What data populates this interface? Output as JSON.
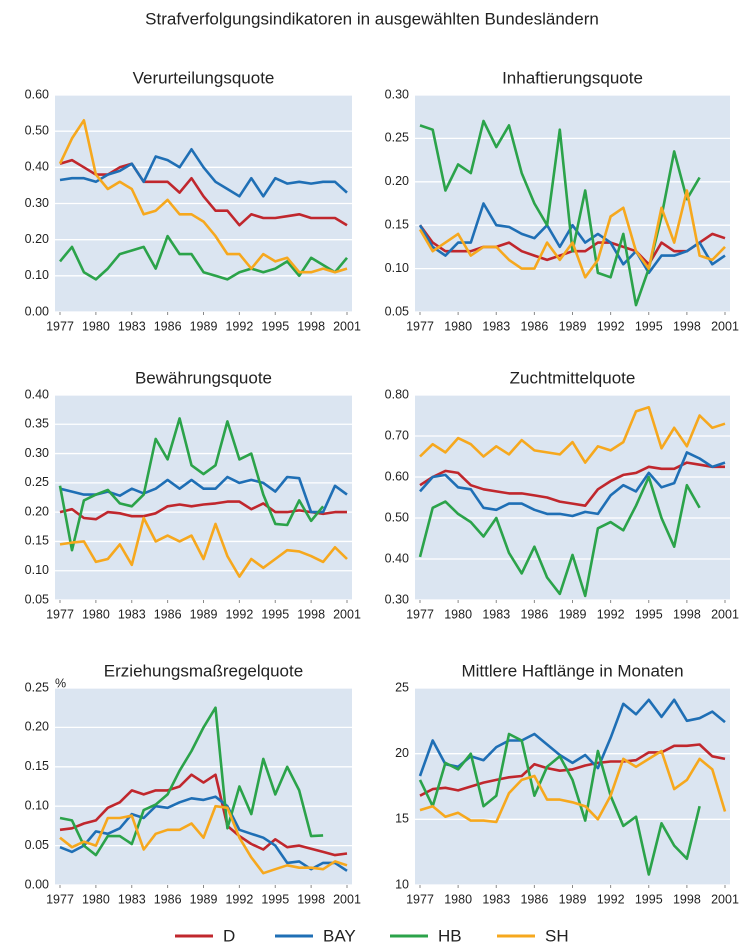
{
  "title": "Strafverfolgungsindikatoren in ausgewählten Bundesländern",
  "legend": [
    {
      "name": "D",
      "color": "#c0272d"
    },
    {
      "name": "BAY",
      "color": "#1f6fb5"
    },
    {
      "name": "HB",
      "color": "#2ba34a"
    },
    {
      "name": "SH",
      "color": "#f6a81e"
    }
  ],
  "chart_data": [
    {
      "type": "line",
      "title": "Verurteilungsquote",
      "x": [
        1977,
        1978,
        1979,
        1980,
        1981,
        1982,
        1983,
        1984,
        1985,
        1986,
        1987,
        1988,
        1989,
        1990,
        1991,
        1992,
        1993,
        1994,
        1995,
        1996,
        1997,
        1998,
        1999,
        2000,
        2001
      ],
      "xlim": [
        1977,
        2001
      ],
      "xticks": [
        1977,
        1980,
        1983,
        1986,
        1989,
        1992,
        1995,
        1998,
        2001
      ],
      "ylim": [
        0,
        0.6
      ],
      "yticks": [
        {
          "value": 0,
          "label": "0.00"
        },
        {
          "value": 0.1,
          "label": "0.10"
        },
        {
          "value": 0.2,
          "label": "0.20"
        },
        {
          "value": 0.3,
          "label": "0.30"
        },
        {
          "value": 0.4,
          "label": "0.40"
        },
        {
          "value": 0.5,
          "label": "0.50"
        },
        {
          "value": 0.6,
          "label": "0.60"
        }
      ],
      "grid": true,
      "series": [
        {
          "values": [
            0.41,
            0.42,
            0.4,
            0.38,
            0.38,
            0.4,
            0.41,
            0.36,
            0.36,
            0.36,
            0.33,
            0.37,
            0.32,
            0.28,
            0.28,
            0.24,
            0.27,
            0.26,
            0.26,
            0.265,
            0.27,
            0.26,
            0.26,
            0.26,
            0.24
          ]
        },
        {
          "values": [
            0.365,
            0.37,
            0.37,
            0.36,
            0.38,
            0.39,
            0.41,
            0.36,
            0.43,
            0.42,
            0.4,
            0.45,
            0.4,
            0.36,
            0.34,
            0.32,
            0.37,
            0.32,
            0.37,
            0.355,
            0.36,
            0.355,
            0.36,
            0.36,
            0.33
          ]
        },
        {
          "values": [
            0.14,
            0.18,
            0.11,
            0.09,
            0.12,
            0.16,
            0.17,
            0.18,
            0.12,
            0.21,
            0.16,
            0.16,
            0.11,
            0.1,
            0.09,
            0.11,
            0.12,
            0.11,
            0.12,
            0.14,
            0.1,
            0.15,
            0.13,
            0.11,
            0.15
          ]
        },
        {
          "values": [
            0.41,
            0.48,
            0.53,
            0.38,
            0.34,
            0.36,
            0.34,
            0.27,
            0.28,
            0.31,
            0.27,
            0.27,
            0.25,
            0.21,
            0.16,
            0.16,
            0.12,
            0.16,
            0.14,
            0.15,
            0.11,
            0.11,
            0.12,
            0.11,
            0.12
          ]
        }
      ]
    },
    {
      "type": "line",
      "title": "Inhaftierungsquote",
      "x": [
        1977,
        1978,
        1979,
        1980,
        1981,
        1982,
        1983,
        1984,
        1985,
        1986,
        1987,
        1988,
        1989,
        1990,
        1991,
        1992,
        1993,
        1994,
        1995,
        1996,
        1997,
        1998,
        1999,
        2000,
        2001
      ],
      "xlim": [
        1977,
        2001
      ],
      "xticks": [
        1977,
        1980,
        1983,
        1986,
        1989,
        1992,
        1995,
        1998,
        2001
      ],
      "ylim": [
        0.05,
        0.3
      ],
      "yticks": [
        0.05,
        {
          "value": 0.1,
          "label": "0.10"
        },
        0.15,
        {
          "value": 0.2,
          "label": "0.20"
        },
        0.25,
        {
          "value": 0.3,
          "label": "0.30"
        }
      ],
      "grid": true,
      "series": [
        {
          "values": [
            0.15,
            0.13,
            0.12,
            0.12,
            0.12,
            0.125,
            0.125,
            0.13,
            0.12,
            0.115,
            0.11,
            0.115,
            0.12,
            0.12,
            0.13,
            0.13,
            0.125,
            0.12,
            0.105,
            0.13,
            0.12,
            0.12,
            0.13,
            0.14,
            0.135
          ]
        },
        {
          "values": [
            0.15,
            0.125,
            0.115,
            0.13,
            0.13,
            0.175,
            0.15,
            0.148,
            0.14,
            0.135,
            0.15,
            0.125,
            0.15,
            0.13,
            0.14,
            0.13,
            0.105,
            0.12,
            0.095,
            0.115,
            0.115,
            0.12,
            0.13,
            0.105,
            0.115
          ]
        },
        {
          "values": [
            0.265,
            0.26,
            0.19,
            0.22,
            0.21,
            0.27,
            0.24,
            0.265,
            0.21,
            0.175,
            0.15,
            0.26,
            0.12,
            0.19,
            0.095,
            0.09,
            0.14,
            0.058,
            0.1,
            0.16,
            0.235,
            0.18,
            0.205,
            null,
            null
          ]
        },
        {
          "values": [
            0.145,
            0.12,
            0.13,
            0.14,
            0.115,
            0.125,
            0.125,
            0.11,
            0.1,
            0.1,
            0.13,
            0.11,
            0.13,
            0.09,
            0.11,
            0.16,
            0.17,
            0.12,
            0.1,
            0.17,
            0.13,
            0.19,
            0.115,
            0.11,
            0.125
          ]
        }
      ]
    },
    {
      "type": "line",
      "title": "Bewährungsquote",
      "x": [
        1977,
        1978,
        1979,
        1980,
        1981,
        1982,
        1983,
        1984,
        1985,
        1986,
        1987,
        1988,
        1989,
        1990,
        1991,
        1992,
        1993,
        1994,
        1995,
        1996,
        1997,
        1998,
        1999,
        2000,
        2001
      ],
      "xlim": [
        1977,
        2001
      ],
      "xticks": [
        1977,
        1980,
        1983,
        1986,
        1989,
        1992,
        1995,
        1998,
        2001
      ],
      "ylim": [
        0.05,
        0.4
      ],
      "yticks": [
        0.05,
        {
          "value": 0.1,
          "label": "0.10"
        },
        0.15,
        {
          "value": 0.2,
          "label": "0.20"
        },
        0.25,
        {
          "value": 0.3,
          "label": "0.30"
        },
        0.35,
        {
          "value": 0.4,
          "label": "0.40"
        }
      ],
      "grid": true,
      "series": [
        {
          "values": [
            0.2,
            0.205,
            0.19,
            0.188,
            0.2,
            0.198,
            0.193,
            0.193,
            0.198,
            0.21,
            0.213,
            0.21,
            0.213,
            0.215,
            0.218,
            0.218,
            0.205,
            0.215,
            0.2,
            0.2,
            0.203,
            0.2,
            0.197,
            0.2,
            0.2
          ]
        },
        {
          "values": [
            0.24,
            0.235,
            0.23,
            0.23,
            0.235,
            0.228,
            0.24,
            0.232,
            0.24,
            0.255,
            0.24,
            0.255,
            0.24,
            0.24,
            0.26,
            0.25,
            0.255,
            0.25,
            0.235,
            0.26,
            0.258,
            0.2,
            0.2,
            0.245,
            0.23
          ]
        },
        {
          "values": [
            0.245,
            0.135,
            0.22,
            0.23,
            0.238,
            0.215,
            0.21,
            0.23,
            0.325,
            0.29,
            0.36,
            0.28,
            0.265,
            0.28,
            0.355,
            0.29,
            0.3,
            0.23,
            0.18,
            0.178,
            0.22,
            0.185,
            0.21,
            null,
            null
          ]
        },
        {
          "values": [
            0.145,
            0.148,
            0.15,
            0.115,
            0.12,
            0.145,
            0.11,
            0.19,
            0.15,
            0.16,
            0.15,
            0.16,
            0.12,
            0.18,
            0.125,
            0.09,
            0.12,
            0.105,
            0.12,
            0.135,
            0.133,
            0.125,
            0.115,
            0.14,
            0.12
          ]
        }
      ]
    },
    {
      "type": "line",
      "title": "Zuchtmittelquote",
      "x": [
        1977,
        1978,
        1979,
        1980,
        1981,
        1982,
        1983,
        1984,
        1985,
        1986,
        1987,
        1988,
        1989,
        1990,
        1991,
        1992,
        1993,
        1994,
        1995,
        1996,
        1997,
        1998,
        1999,
        2000,
        2001
      ],
      "xlim": [
        1977,
        2001
      ],
      "xticks": [
        1977,
        1980,
        1983,
        1986,
        1989,
        1992,
        1995,
        1998,
        2001
      ],
      "ylim": [
        0.3,
        0.8
      ],
      "yticks": [
        {
          "value": 0.3,
          "label": "0.30"
        },
        {
          "value": 0.4,
          "label": "0.40"
        },
        {
          "value": 0.5,
          "label": "0.50"
        },
        {
          "value": 0.6,
          "label": "0.60"
        },
        {
          "value": 0.7,
          "label": "0.70"
        },
        {
          "value": 0.8,
          "label": "0.80"
        }
      ],
      "grid": true,
      "series": [
        {
          "values": [
            0.58,
            0.6,
            0.615,
            0.61,
            0.58,
            0.57,
            0.565,
            0.56,
            0.56,
            0.555,
            0.55,
            0.54,
            0.535,
            0.53,
            0.57,
            0.59,
            0.605,
            0.61,
            0.625,
            0.62,
            0.62,
            0.635,
            0.63,
            0.625,
            0.625
          ]
        },
        {
          "values": [
            0.565,
            0.6,
            0.605,
            0.575,
            0.57,
            0.525,
            0.52,
            0.535,
            0.535,
            0.52,
            0.51,
            0.51,
            0.505,
            0.515,
            0.51,
            0.555,
            0.58,
            0.565,
            0.61,
            0.575,
            0.585,
            0.66,
            0.645,
            0.625,
            0.635
          ]
        },
        {
          "values": [
            0.405,
            0.525,
            0.54,
            0.51,
            0.49,
            0.455,
            0.5,
            0.415,
            0.365,
            0.43,
            0.355,
            0.315,
            0.41,
            0.31,
            0.475,
            0.49,
            0.47,
            0.53,
            0.6,
            0.5,
            0.43,
            0.58,
            0.525,
            null,
            null
          ]
        },
        {
          "values": [
            0.65,
            0.68,
            0.66,
            0.695,
            0.68,
            0.65,
            0.675,
            0.655,
            0.69,
            0.665,
            0.66,
            0.655,
            0.685,
            0.635,
            0.675,
            0.665,
            0.685,
            0.76,
            0.77,
            0.67,
            0.72,
            0.675,
            0.75,
            0.72,
            0.73
          ]
        }
      ]
    },
    {
      "type": "line",
      "title": "Erziehungsmaßregelquote",
      "y_unit": "%",
      "x": [
        1977,
        1978,
        1979,
        1980,
        1981,
        1982,
        1983,
        1984,
        1985,
        1986,
        1987,
        1988,
        1989,
        1990,
        1991,
        1992,
        1993,
        1994,
        1995,
        1996,
        1997,
        1998,
        1999,
        2000,
        2001
      ],
      "xlim": [
        1977,
        2001
      ],
      "xticks": [
        1977,
        1980,
        1983,
        1986,
        1989,
        1992,
        1995,
        1998,
        2001
      ],
      "ylim": [
        0,
        0.25
      ],
      "yticks": [
        {
          "value": 0,
          "label": "0.00"
        },
        0.05,
        {
          "value": 0.1,
          "label": "0.10"
        },
        0.15,
        {
          "value": 0.2,
          "label": "0.20"
        },
        0.25
      ],
      "grid": true,
      "series": [
        {
          "values": [
            0.07,
            0.072,
            0.078,
            0.082,
            0.098,
            0.105,
            0.12,
            0.115,
            0.12,
            0.12,
            0.125,
            0.14,
            0.13,
            0.14,
            0.075,
            0.062,
            0.052,
            0.045,
            0.058,
            0.048,
            0.05,
            0.046,
            0.042,
            0.038,
            0.04
          ]
        },
        {
          "values": [
            0.048,
            0.042,
            0.05,
            0.068,
            0.065,
            0.072,
            0.09,
            0.085,
            0.1,
            0.098,
            0.105,
            0.11,
            0.108,
            0.112,
            0.1,
            0.07,
            0.065,
            0.06,
            0.05,
            0.028,
            0.03,
            0.02,
            0.028,
            0.028,
            0.018
          ]
        },
        {
          "values": [
            0.085,
            0.082,
            0.05,
            0.038,
            0.062,
            0.062,
            0.052,
            0.095,
            0.102,
            0.115,
            0.145,
            0.17,
            0.2,
            0.225,
            0.072,
            0.125,
            0.09,
            0.16,
            0.115,
            0.15,
            0.12,
            0.062,
            0.063,
            null,
            null
          ]
        },
        {
          "values": [
            0.06,
            0.048,
            0.055,
            0.05,
            0.085,
            0.085,
            0.088,
            0.045,
            0.065,
            0.07,
            0.07,
            0.078,
            0.06,
            0.1,
            0.098,
            0.06,
            0.035,
            0.015,
            0.02,
            0.025,
            0.022,
            0.022,
            0.02,
            0.03,
            0.025
          ]
        }
      ]
    },
    {
      "type": "line",
      "title": "Mittlere Haftlänge in Monaten",
      "x": [
        1977,
        1978,
        1979,
        1980,
        1981,
        1982,
        1983,
        1984,
        1985,
        1986,
        1987,
        1988,
        1989,
        1990,
        1991,
        1992,
        1993,
        1994,
        1995,
        1996,
        1997,
        1998,
        1999,
        2000,
        2001
      ],
      "xlim": [
        1977,
        2001
      ],
      "xticks": [
        1977,
        1980,
        1983,
        1986,
        1989,
        1992,
        1995,
        1998,
        2001
      ],
      "ylim": [
        10,
        25
      ],
      "yticks": [
        10,
        15,
        20,
        25
      ],
      "grid": true,
      "series": [
        {
          "values": [
            16.8,
            17.3,
            17.4,
            17.2,
            17.5,
            17.8,
            18.0,
            18.2,
            18.3,
            19.2,
            18.9,
            18.7,
            18.8,
            19.1,
            19.3,
            19.4,
            19.4,
            19.5,
            20.1,
            20.1,
            20.6,
            20.6,
            20.7,
            19.8,
            19.6
          ]
        },
        {
          "values": [
            18.3,
            21.0,
            19.2,
            19.0,
            19.8,
            19.5,
            20.5,
            21.0,
            21.0,
            21.5,
            20.7,
            19.9,
            19.3,
            19.9,
            18.9,
            21.2,
            23.8,
            23.0,
            24.1,
            22.8,
            24.1,
            22.5,
            22.7,
            23.2,
            22.4
          ]
        },
        {
          "values": [
            18.0,
            16.0,
            19.3,
            18.8,
            20.0,
            16.0,
            16.8,
            21.5,
            21.0,
            16.8,
            19.0,
            19.8,
            18.0,
            14.9,
            20.2,
            16.8,
            14.5,
            15.2,
            10.8,
            14.7,
            13.0,
            12.0,
            16.0,
            null,
            null
          ]
        },
        {
          "values": [
            15.7,
            16.0,
            15.2,
            15.5,
            14.9,
            14.9,
            14.8,
            17.0,
            18.0,
            18.3,
            16.5,
            16.5,
            16.3,
            16.0,
            15.0,
            16.8,
            19.6,
            19.0,
            19.6,
            20.2,
            17.3,
            18.0,
            19.6,
            18.8,
            15.6
          ]
        }
      ]
    }
  ]
}
